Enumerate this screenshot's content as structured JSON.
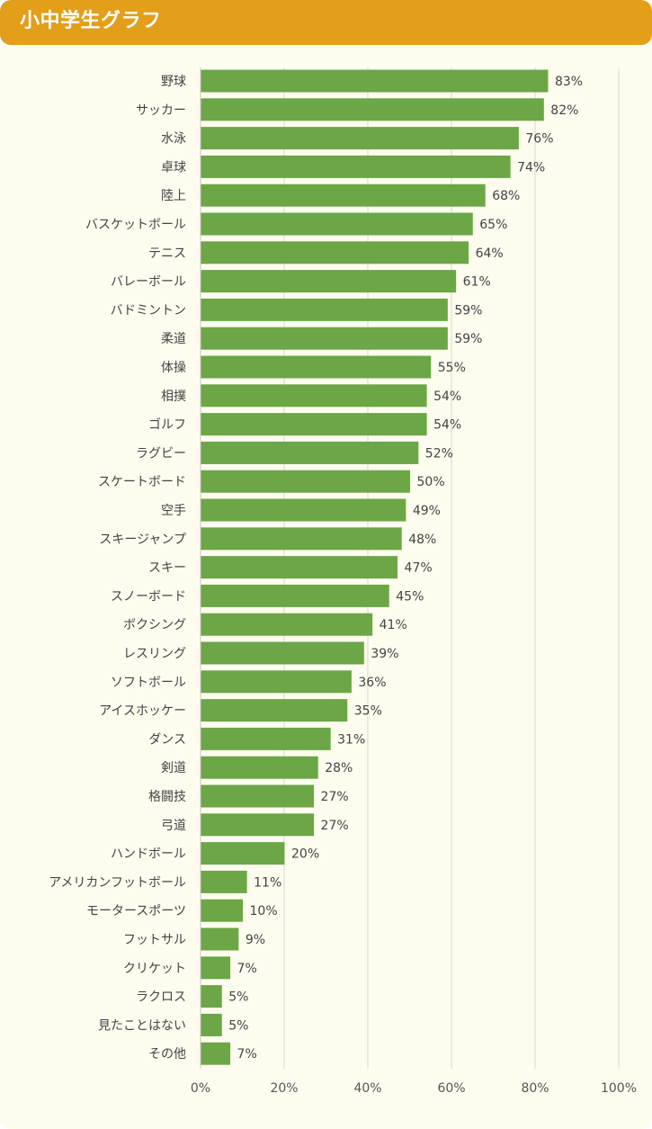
{
  "header": {
    "title": "小中学生グラフ"
  },
  "colors": {
    "header_bg": "#e39e1a",
    "card_bg": "#fdfcee",
    "bar": "#6ca647",
    "grid": "#d8d8d0"
  },
  "chart_data": {
    "type": "bar",
    "orientation": "horizontal",
    "title": "",
    "xlabel": "",
    "ylabel": "",
    "xlim": [
      0,
      100
    ],
    "ticks": [
      "0%",
      "20%",
      "40%",
      "60%",
      "80%",
      "100%"
    ],
    "tick_values": [
      0,
      20,
      40,
      60,
      80,
      100
    ],
    "grid": true,
    "categories": [
      "野球",
      "サッカー",
      "水泳",
      "卓球",
      "陸上",
      "バスケットボール",
      "テニス",
      "バレーボール",
      "バドミントン",
      "柔道",
      "体操",
      "相撲",
      "ゴルフ",
      "ラグビー",
      "スケートボード",
      "空手",
      "スキージャンプ",
      "スキー",
      "スノーボード",
      "ボクシング",
      "レスリング",
      "ソフトボール",
      "アイスホッケー",
      "ダンス",
      "剣道",
      "格闘技",
      "弓道",
      "ハンドボール",
      "アメリカンフットボール",
      "モータースポーツ",
      "フットサル",
      "クリケット",
      "ラクロス",
      "見たことはない",
      "その他"
    ],
    "values": [
      83,
      82,
      76,
      74,
      68,
      65,
      64,
      61,
      59,
      59,
      55,
      54,
      54,
      52,
      50,
      49,
      48,
      47,
      45,
      41,
      39,
      36,
      35,
      31,
      28,
      27,
      27,
      20,
      11,
      10,
      9,
      7,
      5,
      5,
      7
    ],
    "value_labels": [
      "83%",
      "82%",
      "76%",
      "74%",
      "68%",
      "65%",
      "64%",
      "61%",
      "59%",
      "59%",
      "55%",
      "54%",
      "54%",
      "52%",
      "50%",
      "49%",
      "48%",
      "47%",
      "45%",
      "41%",
      "39%",
      "36%",
      "35%",
      "31%",
      "28%",
      "27%",
      "27%",
      "20%",
      "11%",
      "10%",
      "9%",
      "7%",
      "5%",
      "5%",
      "7%"
    ]
  }
}
